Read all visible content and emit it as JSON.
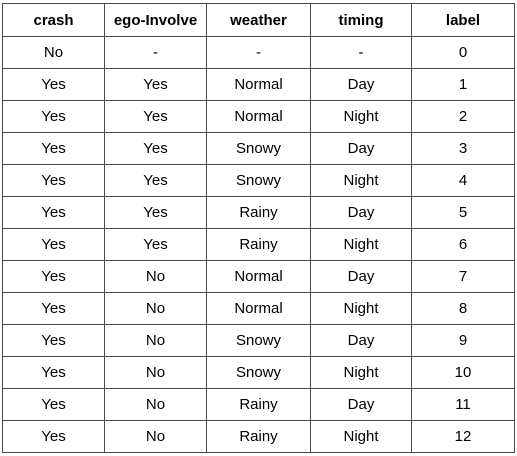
{
  "table": {
    "columns": [
      "crash",
      "ego-Involve",
      "weather",
      "timing",
      "label"
    ],
    "rows": [
      [
        "No",
        "-",
        "-",
        "-",
        "0"
      ],
      [
        "Yes",
        "Yes",
        "Normal",
        "Day",
        "1"
      ],
      [
        "Yes",
        "Yes",
        "Normal",
        "Night",
        "2"
      ],
      [
        "Yes",
        "Yes",
        "Snowy",
        "Day",
        "3"
      ],
      [
        "Yes",
        "Yes",
        "Snowy",
        "Night",
        "4"
      ],
      [
        "Yes",
        "Yes",
        "Rainy",
        "Day",
        "5"
      ],
      [
        "Yes",
        "Yes",
        "Rainy",
        "Night",
        "6"
      ],
      [
        "Yes",
        "No",
        "Normal",
        "Day",
        "7"
      ],
      [
        "Yes",
        "No",
        "Normal",
        "Night",
        "8"
      ],
      [
        "Yes",
        "No",
        "Snowy",
        "Day",
        "9"
      ],
      [
        "Yes",
        "No",
        "Snowy",
        "Night",
        "10"
      ],
      [
        "Yes",
        "No",
        "Rainy",
        "Day",
        "11"
      ],
      [
        "Yes",
        "No",
        "Rainy",
        "Night",
        "12"
      ]
    ]
  }
}
